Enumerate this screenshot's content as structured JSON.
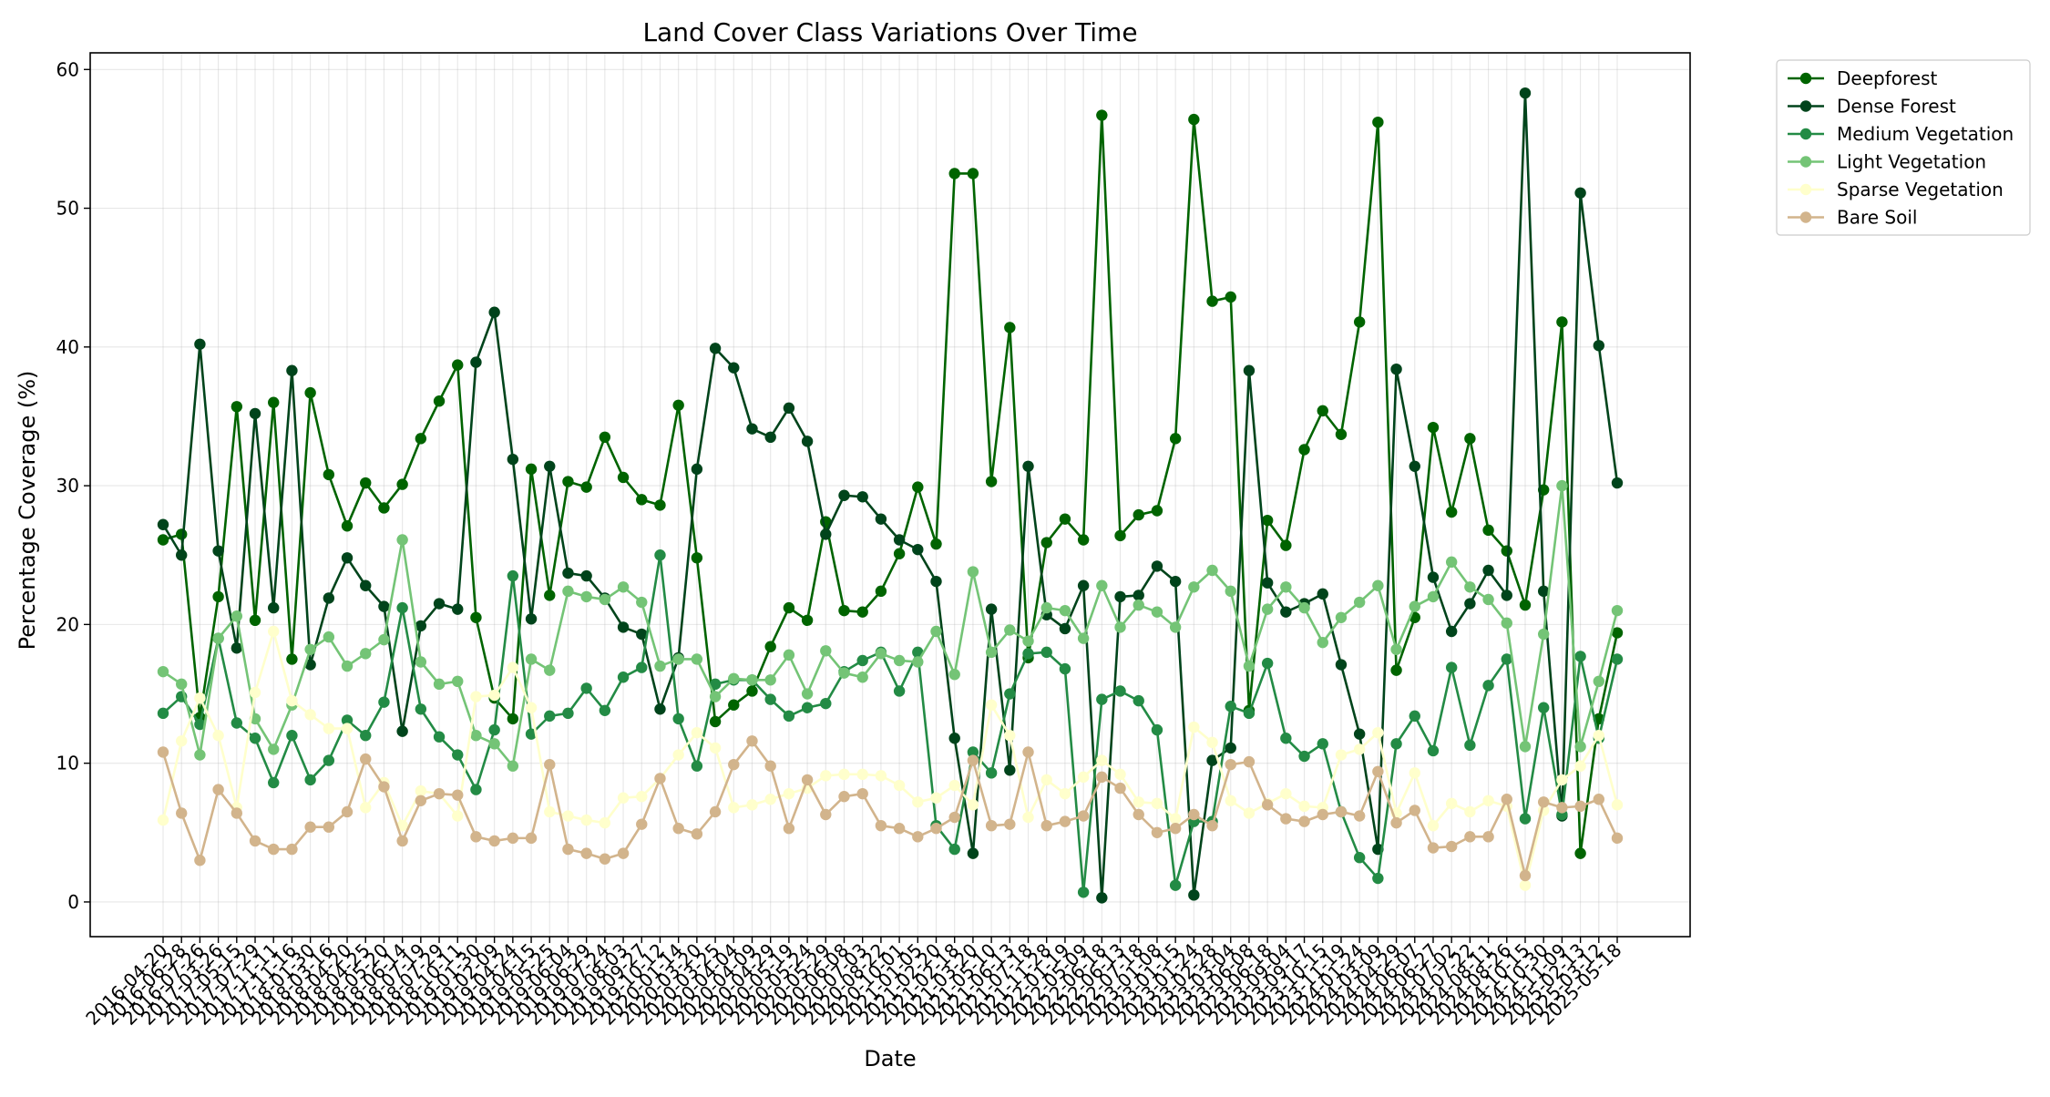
{
  "chart_data": {
    "type": "line",
    "title": "Land Cover Class Variations Over Time",
    "xlabel": "Date",
    "ylabel": "Percentage Coverage (%)",
    "ylim": [
      -2.5,
      61.2
    ],
    "yticks": [
      0,
      10,
      20,
      30,
      40,
      50,
      60
    ],
    "grid": true,
    "legend_position": "outside upper right",
    "dates": [
      "2016-04-20",
      "2016-06-28",
      "2016-07-26",
      "2017-03-26",
      "2017-05-15",
      "2017-07-29",
      "2017-11-11",
      "2017-11-16",
      "2018-01-30",
      "2018-03-16",
      "2018-04-20",
      "2018-04-25",
      "2018-05-20",
      "2018-06-14",
      "2018-07-19",
      "2018-07-29",
      "2018-10-11",
      "2019-01-30",
      "2019-02-09",
      "2019-04-24",
      "2019-04-15",
      "2019-05-25",
      "2019-06-04",
      "2019-06-29",
      "2019-07-24",
      "2019-08-03",
      "2019-09-27",
      "2019-10-12",
      "2020-01-14",
      "2020-03-20",
      "2020-03-25",
      "2020-04-04",
      "2020-04-09",
      "2020-04-29",
      "2020-05-19",
      "2020-05-24",
      "2020-05-29",
      "2020-06-08",
      "2020-07-03",
      "2020-08-22",
      "2020-10-01",
      "2021-01-05",
      "2021-02-20",
      "2021-02-18",
      "2021-03-20",
      "2021-05-10",
      "2021-06-13",
      "2021-07-18",
      "2021-11-28",
      "2022-01-19",
      "2022-05-09",
      "2022-06-18",
      "2022-06-13",
      "2022-07-18",
      "2023-01-08",
      "2023-01-15",
      "2023-01-24",
      "2023-02-28",
      "2023-03-04",
      "2023-06-08",
      "2023-06-18",
      "2023-09-04",
      "2023-09-17",
      "2023-10-15",
      "2023-11-19",
      "2024-01-24",
      "2024-03-09",
      "2024-04-29",
      "2024-06-07",
      "2024-06-27",
      "2024-07-02",
      "2024-07-22",
      "2024-08-11",
      "2024-08-26",
      "2024-10-15",
      "2024-10-30",
      "2024-11-09",
      "2025-02-13",
      "2025-03-12",
      "2025-05-18"
    ],
    "tick_labels": [
      "2016-04-20",
      "2016-06-28",
      "2016-07-26",
      "2017-03-26",
      "2017-05-15",
      "2017-07-29",
      "2017-11-11",
      "2017-11-16",
      "2018-01-30",
      "2018-03-16",
      "2018-04-20",
      "2018-04-25",
      "2018-05-20",
      "2018-06-14",
      "2018-07-19",
      "2018-07-29",
      "2018-10-11",
      "2019-01-30",
      "2019-02-09",
      "2019-04-24",
      "2019-04-15",
      "2019-05-25",
      "2019-06-04",
      "2019-06-29",
      "2019-07-24",
      "2019-08-03",
      "2019-09-27",
      "2019-10-12",
      "2020-01-14",
      "2020-03-20",
      "2020-03-25",
      "2020-04-04",
      "2020-04-09",
      "2020-04-29",
      "2020-05-19",
      "2020-05-24",
      "2020-05-29",
      "2020-06-08",
      "2020-07-03",
      "2020-08-22",
      "2020-10-01",
      "2021-01-05",
      "2021-02-20",
      "2021-02-18",
      "2021-03-20",
      "2021-05-10",
      "2021-06-13",
      "2021-07-18",
      "2021-11-28",
      "2022-01-19",
      "2022-05-09",
      "2022-06-18",
      "2022-06-13",
      "2022-07-18",
      "2023-01-08",
      "2023-01-15",
      "2023-01-24",
      "2023-02-28",
      "2023-03-04",
      "2023-06-08",
      "2023-06-18",
      "2023-09-04",
      "2023-09-17",
      "2023-10-15",
      "2023-11-19",
      "2024-01-24",
      "2024-03-09",
      "2024-04-29",
      "2024-06-07",
      "2024-06-27",
      "2024-07-02",
      "2024-07-22",
      "2024-08-11",
      "2024-08-26",
      "2024-10-15",
      "2024-10-30",
      "2024-11-09",
      "2025-02-13",
      "2025-03-12",
      "2025-05-18"
    ],
    "series": [
      {
        "name": "Deepforest",
        "color": "#006400",
        "values": [
          26.1,
          26.5,
          13.3,
          22.0,
          35.7,
          20.3,
          36.0,
          17.5,
          36.7,
          30.8,
          27.1,
          30.2,
          28.4,
          30.1,
          33.4,
          36.1,
          38.7,
          20.5,
          14.7,
          13.2,
          31.2,
          22.1,
          30.3,
          29.9,
          33.5,
          30.6,
          29.0,
          28.6,
          35.8,
          24.8,
          13.0,
          14.2,
          15.2,
          18.4,
          21.2,
          20.3,
          27.4,
          21.0,
          20.9,
          22.4,
          25.1,
          29.9,
          25.8,
          52.5,
          52.5,
          30.3,
          41.4,
          17.6,
          25.9,
          27.6,
          26.1,
          56.7,
          26.4,
          27.9,
          28.2,
          33.4,
          56.4,
          43.3,
          43.6,
          13.8,
          27.5,
          25.7,
          32.6,
          35.4,
          33.7,
          41.8,
          56.2,
          16.7,
          20.5,
          34.2,
          28.1,
          33.4,
          26.8,
          25.3,
          21.4,
          29.7,
          41.8,
          3.5,
          13.2,
          19.4
        ]
      },
      {
        "name": "Dense Forest",
        "color": "#00441b",
        "values": [
          27.2,
          25.0,
          40.2,
          25.3,
          18.3,
          35.2,
          21.2,
          38.3,
          17.1,
          21.9,
          24.8,
          22.8,
          21.3,
          12.3,
          19.9,
          21.5,
          21.1,
          38.9,
          42.5,
          31.9,
          20.4,
          31.4,
          23.7,
          23.5,
          21.9,
          19.8,
          19.3,
          13.9,
          17.6,
          31.2,
          39.9,
          38.5,
          34.1,
          33.5,
          35.6,
          33.2,
          26.5,
          29.3,
          29.2,
          27.6,
          26.1,
          25.4,
          23.1,
          11.8,
          3.5,
          21.1,
          9.5,
          31.4,
          20.7,
          19.7,
          22.8,
          0.3,
          22.0,
          22.1,
          24.2,
          23.1,
          0.5,
          10.2,
          11.1,
          38.3,
          23.0,
          20.9,
          21.5,
          22.2,
          17.1,
          12.1,
          3.8,
          38.4,
          31.4,
          23.4,
          19.5,
          21.5,
          23.9,
          22.1,
          58.3,
          22.4,
          6.2,
          51.1,
          40.1,
          30.2
        ]
      },
      {
        "name": "Medium Vegetation",
        "color": "#238b45",
        "values": [
          13.6,
          14.8,
          12.8,
          19.0,
          12.9,
          11.8,
          8.6,
          12.0,
          8.8,
          10.2,
          13.1,
          12.0,
          14.4,
          21.2,
          13.9,
          11.9,
          10.6,
          8.1,
          12.4,
          23.5,
          12.1,
          13.4,
          13.6,
          15.4,
          13.8,
          16.2,
          16.9,
          25.0,
          13.2,
          9.8,
          15.7,
          16.0,
          16.0,
          14.6,
          13.4,
          14.0,
          14.3,
          16.6,
          17.4,
          18.0,
          15.2,
          18.0,
          5.5,
          3.8,
          10.8,
          9.3,
          15.0,
          17.9,
          18.0,
          16.8,
          0.7,
          14.6,
          15.2,
          14.5,
          12.4,
          1.2,
          5.8,
          5.8,
          14.1,
          13.6,
          17.2,
          11.8,
          10.5,
          11.4,
          6.5,
          3.2,
          1.7,
          11.4,
          13.4,
          10.9,
          16.9,
          11.3,
          15.6,
          17.5,
          6.0,
          14.0,
          6.3,
          17.7,
          11.8,
          17.5
        ]
      },
      {
        "name": "Light Vegetation",
        "color": "#74c476",
        "values": [
          16.6,
          15.7,
          10.6,
          19.0,
          20.6,
          13.2,
          11.0,
          14.2,
          18.2,
          19.1,
          17.0,
          17.9,
          18.9,
          26.1,
          17.3,
          15.7,
          15.9,
          12.0,
          11.4,
          9.8,
          17.5,
          16.7,
          22.4,
          22.0,
          21.8,
          22.7,
          21.6,
          17.0,
          17.5,
          17.5,
          14.8,
          16.1,
          16.0,
          16.0,
          17.8,
          15.0,
          18.1,
          16.5,
          16.2,
          17.9,
          17.4,
          17.3,
          19.5,
          16.4,
          23.8,
          18.0,
          19.6,
          18.8,
          21.2,
          21.0,
          19.0,
          22.8,
          19.8,
          21.4,
          20.9,
          19.8,
          22.7,
          23.9,
          22.4,
          17.0,
          21.1,
          22.7,
          21.2,
          18.7,
          20.5,
          21.6,
          22.8,
          18.2,
          21.3,
          22.0,
          24.5,
          22.7,
          21.8,
          20.1,
          11.2,
          19.3,
          30.0,
          11.2,
          15.9,
          21.0
        ]
      },
      {
        "name": "Sparse Vegetation",
        "color": "#ffffcc",
        "values": [
          5.9,
          11.6,
          14.7,
          12.0,
          6.8,
          15.1,
          19.5,
          14.5,
          13.5,
          12.5,
          12.5,
          6.8,
          8.6,
          5.5,
          8.0,
          7.8,
          6.2,
          14.8,
          14.9,
          16.9,
          14.0,
          6.5,
          6.2,
          5.9,
          5.7,
          7.5,
          7.6,
          8.9,
          10.6,
          12.2,
          11.1,
          6.8,
          7.0,
          7.4,
          7.8,
          8.2,
          9.1,
          9.2,
          9.2,
          9.1,
          8.4,
          7.2,
          7.5,
          8.4,
          7.0,
          14.2,
          12.0,
          6.1,
          8.8,
          7.8,
          9.0,
          10.2,
          9.2,
          7.2,
          7.1,
          6.0,
          12.6,
          11.5,
          7.3,
          6.4,
          7.1,
          7.8,
          6.9,
          6.8,
          10.6,
          11.0,
          12.2,
          6.4,
          9.3,
          5.5,
          7.1,
          6.5,
          7.3,
          6.9,
          1.2,
          6.6,
          8.8,
          9.8,
          12.0,
          7.0
        ]
      },
      {
        "name": "Bare Soil",
        "color": "#d2b48c",
        "values": [
          10.8,
          6.4,
          3.0,
          8.1,
          6.4,
          4.4,
          3.8,
          3.8,
          5.4,
          5.4,
          6.5,
          10.3,
          8.3,
          4.4,
          7.3,
          7.8,
          7.7,
          4.7,
          4.4,
          4.6,
          4.6,
          9.9,
          3.8,
          3.5,
          3.1,
          3.5,
          5.6,
          8.9,
          5.3,
          4.9,
          6.5,
          9.9,
          11.6,
          9.8,
          5.3,
          8.8,
          6.3,
          7.6,
          7.8,
          5.5,
          5.3,
          4.7,
          5.3,
          6.1,
          10.2,
          5.5,
          5.6,
          10.8,
          5.5,
          5.8,
          6.2,
          9.0,
          8.2,
          6.3,
          5.0,
          5.3,
          6.3,
          5.5,
          9.9,
          10.1,
          7.0,
          6.0,
          5.8,
          6.3,
          6.5,
          6.2,
          9.4,
          5.7,
          6.6,
          3.9,
          4.0,
          4.7,
          4.7,
          7.4,
          1.9,
          7.2,
          6.8,
          6.9,
          7.4,
          4.6
        ]
      }
    ]
  }
}
